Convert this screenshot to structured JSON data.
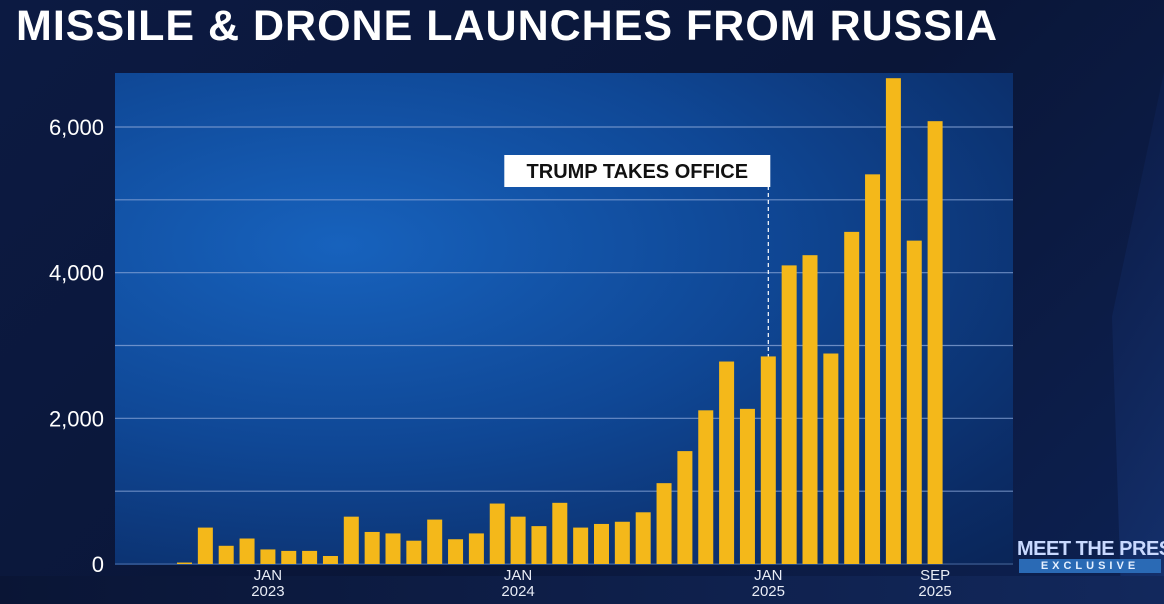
{
  "title": "MISSILE & DRONE LAUNCHES FROM RUSSIA",
  "logo": {
    "main": "MEET THE PRESS",
    "sub": "EXCLUSIVE"
  },
  "colors": {
    "bar": "#f4b81a",
    "grid": "#8aa6d8",
    "text": "#ffffff",
    "tick": "#e8ecf5"
  },
  "chart_data": {
    "type": "bar",
    "title": "MISSILE & DRONE LAUNCHES FROM RUSSIA",
    "xlabel": "",
    "ylabel": "",
    "ylim": [
      0,
      6000
    ],
    "ytick_values": [
      0,
      2000,
      4000,
      6000
    ],
    "ytick_labels": [
      "0",
      "2,000",
      "4,000",
      "6,000"
    ],
    "gridlines": [
      0,
      1000,
      2000,
      3000,
      4000,
      5000,
      6000
    ],
    "categories": [
      "SEP 2022",
      "OCT 2022",
      "NOV 2022",
      "DEC 2022",
      "JAN 2023",
      "FEB 2023",
      "MAR 2023",
      "APR 2023",
      "MAY 2023",
      "JUN 2023",
      "JUL 2023",
      "AUG 2023",
      "SEP 2023",
      "OCT 2023",
      "NOV 2023",
      "DEC 2023",
      "JAN 2024",
      "FEB 2024",
      "MAR 2024",
      "APR 2024",
      "MAY 2024",
      "JUN 2024",
      "JUL 2024",
      "AUG 2024",
      "SEP 2024",
      "OCT 2024",
      "NOV 2024",
      "DEC 2024",
      "JAN 2025",
      "FEB 2025",
      "MAR 2025",
      "APR 2025",
      "MAY 2025",
      "JUN 2025",
      "JUL 2025",
      "AUG 2025",
      "SEP 2025"
    ],
    "values": [
      20,
      500,
      250,
      350,
      200,
      180,
      180,
      110,
      650,
      440,
      420,
      320,
      610,
      340,
      420,
      830,
      650,
      520,
      840,
      500,
      550,
      580,
      710,
      1110,
      1550,
      2110,
      2780,
      2130,
      2850,
      4100,
      4240,
      2890,
      4560,
      5350,
      6670,
      4440,
      6080
    ],
    "xticks": [
      {
        "category": "JAN 2023",
        "label_top": "JAN",
        "label_bottom": "2023"
      },
      {
        "category": "JAN 2024",
        "label_top": "JAN",
        "label_bottom": "2024"
      },
      {
        "category": "JAN 2025",
        "label_top": "JAN",
        "label_bottom": "2025"
      },
      {
        "category": "SEP 2025",
        "label_top": "SEP",
        "label_bottom": "2025"
      }
    ],
    "annotations": [
      {
        "text": "TRUMP TAKES OFFICE",
        "category": "JAN 2025",
        "style": "dashed-vertical-line"
      }
    ]
  }
}
